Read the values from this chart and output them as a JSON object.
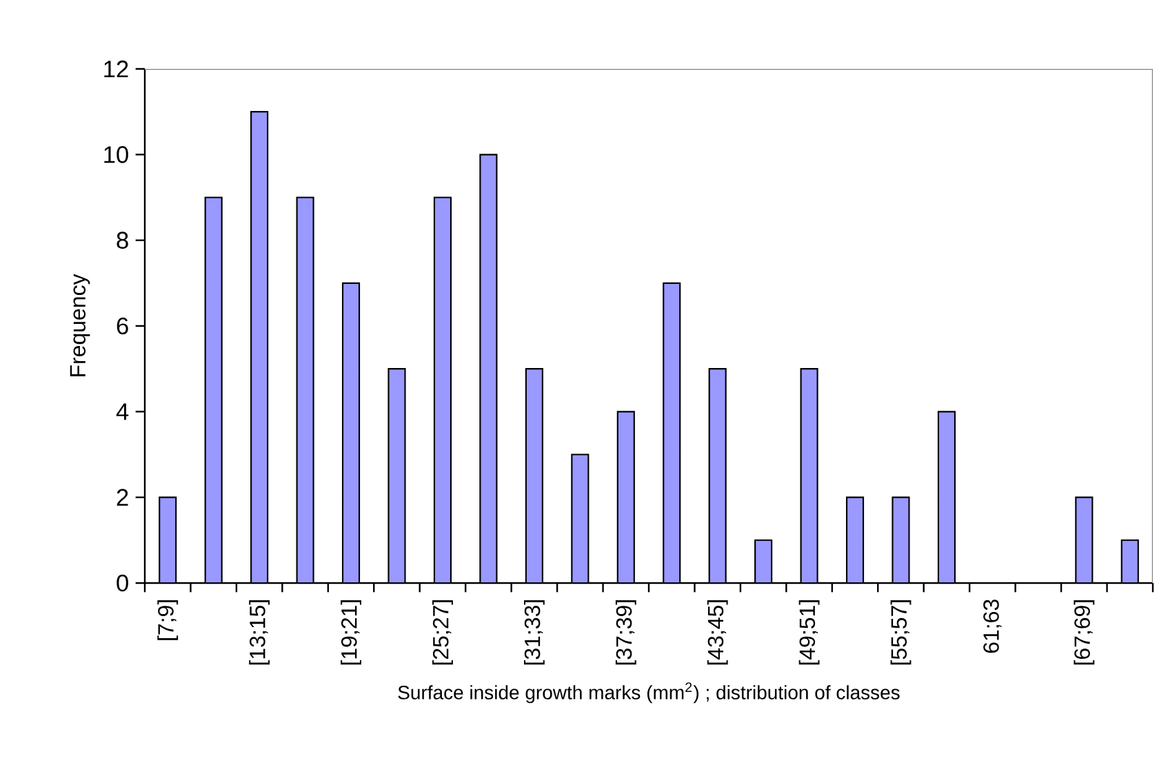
{
  "chart_data": {
    "type": "bar",
    "xlabel": "Surface inside growth marks  (mm$^{2}$) ; distribution of classes",
    "ylabel": "Frequency",
    "categories": [
      "[7;9]",
      null,
      "[13;15]",
      null,
      "[19;21]",
      null,
      "[25;27]",
      null,
      "[31;33]",
      null,
      "[37;39]",
      null,
      "[43;45]",
      null,
      "[49;51]",
      null,
      "[55;57]",
      null,
      "61;63",
      null,
      "[67;69]",
      null
    ],
    "values": [
      2,
      9,
      11,
      9,
      7,
      5,
      9,
      10,
      5,
      3,
      4,
      7,
      5,
      1,
      5,
      2,
      2,
      4,
      0,
      0,
      2,
      1
    ],
    "color": "#9999ff",
    "ylim": [
      0,
      12
    ],
    "yticks": [
      0,
      2,
      4,
      6,
      8,
      10,
      12
    ],
    "grid": false
  }
}
